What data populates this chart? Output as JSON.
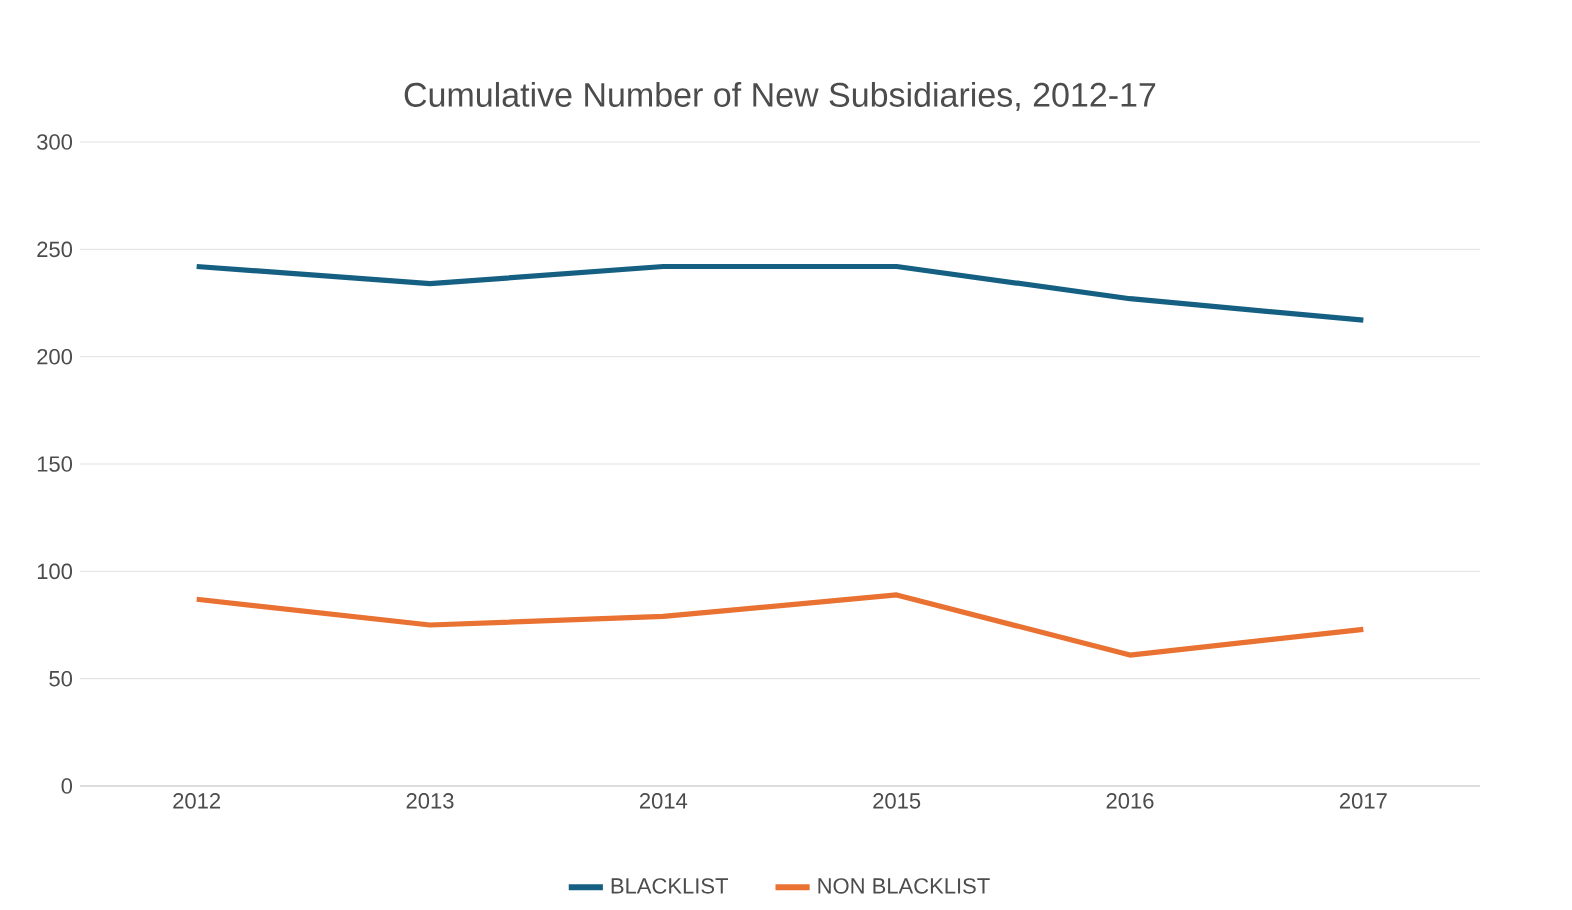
{
  "chart_data": {
    "type": "line",
    "title": "Cumulative Number of New Subsidiaries, 2012-17",
    "categories": [
      "2012",
      "2013",
      "2014",
      "2015",
      "2016",
      "2017"
    ],
    "series": [
      {
        "name": "BLACKLIST",
        "color": "#156082",
        "values": [
          242,
          234,
          242,
          242,
          227,
          217
        ]
      },
      {
        "name": "NON BLACKLIST",
        "color": "#e97132",
        "values": [
          87,
          75,
          79,
          89,
          61,
          73
        ]
      }
    ],
    "ylim": [
      0,
      300
    ],
    "yticks": [
      0,
      50,
      100,
      150,
      200,
      250,
      300
    ],
    "grid": "y",
    "legend": "bottom",
    "marker": "none",
    "line_style": "solid"
  }
}
